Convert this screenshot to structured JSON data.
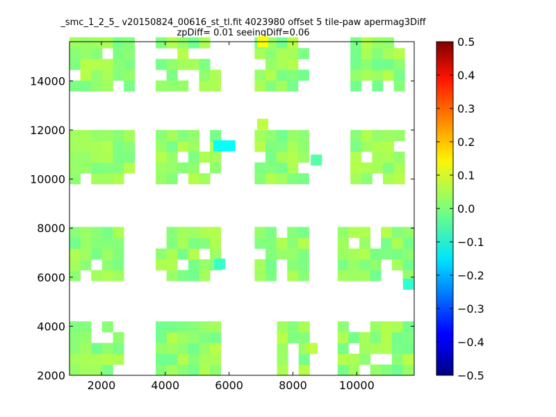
{
  "chart_data": {
    "type": "heatmap",
    "title_line1": "_smc_1_2_5_ v20150824_00616_st_tl.fit 4023980 offset 5 tile-paw apermag3Diff",
    "title_line2": "zpDiff= 0.01 seeingDiff=0.06",
    "xlabel": "",
    "ylabel": "",
    "xlim": [
      1000,
      11800
    ],
    "ylim": [
      2000,
      15600
    ],
    "x_ticks": [
      2000,
      4000,
      6000,
      8000,
      10000
    ],
    "y_ticks": [
      2000,
      4000,
      6000,
      8000,
      10000,
      12000,
      14000
    ],
    "x_tick_labels": [
      "2000",
      "4000",
      "6000",
      "8000",
      "10000"
    ],
    "y_tick_labels": [
      "2000",
      "4000",
      "6000",
      "8000",
      "10000",
      "12000",
      "14000"
    ],
    "cell_size": [
      340,
      440
    ],
    "colormap": "jet",
    "colorbar": {
      "min": -0.5,
      "max": 0.5,
      "ticks": [
        0.5,
        0.4,
        0.3,
        0.2,
        0.1,
        0.0,
        -0.1,
        -0.2,
        -0.3,
        -0.4,
        -0.5
      ],
      "tick_labels": [
        "0.5",
        "0.4",
        "0.3",
        "0.2",
        "0.1",
        "0.0",
        "−0.1",
        "−0.2",
        "−0.3",
        "−0.4",
        "−0.5"
      ]
    },
    "grid": false,
    "note_values": "Cells are colored by apermag3Diff value; most near 0.0 (green), with outliers near +0.12 (yellow) and -0.12 (cyan).",
    "bands": [
      {
        "y_start": 2000,
        "rows": 5,
        "column_groups": [
          [
            1000,
            2900
          ],
          [
            3700,
            6000
          ],
          [
            7500,
            8800
          ],
          [
            9400,
            11800
          ]
        ]
      },
      {
        "y_start": 5850,
        "rows": 5,
        "column_groups": [
          [
            1000,
            2900
          ],
          [
            3700,
            6000
          ],
          [
            6800,
            8800
          ],
          [
            9400,
            11800
          ]
        ]
      },
      {
        "y_start": 9800,
        "rows": 5,
        "column_groups": [
          [
            1000,
            3300
          ],
          [
            3700,
            6000
          ],
          [
            6800,
            8800
          ],
          [
            9800,
            11800
          ]
        ]
      },
      {
        "y_start": 13580,
        "rows": 5,
        "column_groups": [
          [
            1000,
            3300
          ],
          [
            3700,
            6000
          ],
          [
            6800,
            8800
          ],
          [
            9800,
            11800
          ]
        ]
      }
    ],
    "special_cells": [
      {
        "x": 6880,
        "y": 15380,
        "value": 0.12
      },
      {
        "x": 6880,
        "y": 12020,
        "value": 0.06
      },
      {
        "x": 5510,
        "y": 11140,
        "value": -0.12
      },
      {
        "x": 5850,
        "y": 11140,
        "value": -0.12
      },
      {
        "x": 11450,
        "y": 5500,
        "value": -0.08
      },
      {
        "x": 8420,
        "y": 2880,
        "value": 0.06
      },
      {
        "x": 5530,
        "y": 6320,
        "value": -0.07
      },
      {
        "x": 8560,
        "y": 10560,
        "value": -0.04
      }
    ]
  }
}
